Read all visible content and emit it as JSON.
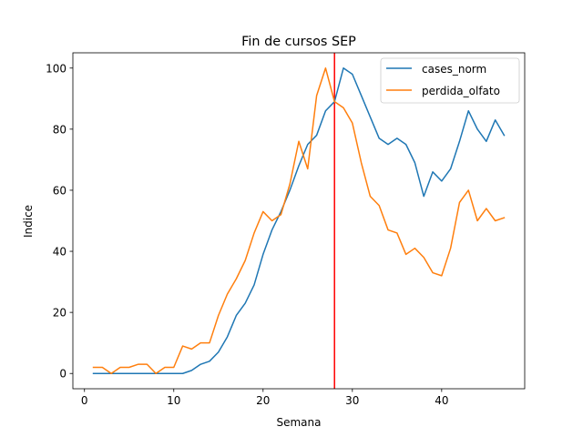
{
  "chart_data": {
    "type": "line",
    "title": "Fin de cursos SEP",
    "xlabel": "Semana",
    "ylabel": "Indice",
    "xlim": [
      -1.3,
      49.3
    ],
    "ylim": [
      -5,
      105
    ],
    "xticks": [
      0,
      10,
      20,
      30,
      40
    ],
    "yticks": [
      0,
      20,
      40,
      60,
      80,
      100
    ],
    "grid": false,
    "legend_position": "top-right",
    "vline": {
      "x": 28,
      "color": "#ff0000"
    },
    "x": [
      1,
      2,
      3,
      4,
      5,
      6,
      7,
      8,
      9,
      10,
      11,
      12,
      13,
      14,
      15,
      16,
      17,
      18,
      19,
      20,
      21,
      22,
      23,
      24,
      25,
      26,
      27,
      28,
      29,
      30,
      31,
      32,
      33,
      34,
      35,
      36,
      37,
      38,
      39,
      40,
      41,
      42,
      43,
      44,
      45,
      46,
      47
    ],
    "series": [
      {
        "name": "cases_norm",
        "color": "#1f77b4",
        "values": [
          0,
          0,
          0,
          0,
          0,
          0,
          0,
          0,
          0,
          0,
          0,
          1,
          3,
          4,
          7,
          12,
          19,
          23,
          29,
          39,
          47,
          53,
          60,
          68,
          75,
          78,
          86,
          89,
          100,
          98,
          91,
          84,
          77,
          75,
          77,
          75,
          69,
          58,
          66,
          63,
          67,
          76,
          86,
          80,
          76,
          83,
          78
        ]
      },
      {
        "name": "perdida_olfato",
        "color": "#ff7f0e",
        "values": [
          2,
          2,
          0,
          2,
          2,
          3,
          3,
          0,
          2,
          2,
          9,
          8,
          10,
          10,
          19,
          26,
          31,
          37,
          46,
          53,
          50,
          52,
          62,
          76,
          67,
          91,
          100,
          89,
          87,
          82,
          69,
          58,
          55,
          47,
          46,
          39,
          41,
          38,
          33,
          32,
          41,
          56,
          60,
          50,
          54,
          50,
          51
        ]
      }
    ]
  }
}
